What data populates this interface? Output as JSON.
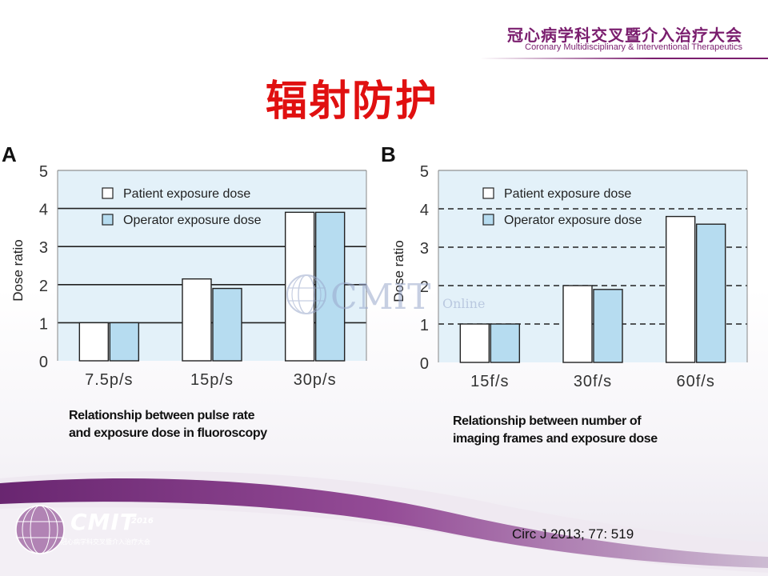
{
  "header": {
    "org_cn": "冠心病学科交叉暨介入治疗大会",
    "org_en": "Coronary Multidisciplinary & Interventional Therapeutics"
  },
  "title": "辐射防护",
  "watermark": {
    "text": "CMIT",
    "small": "Online"
  },
  "logo": {
    "text": "CMIT",
    "year": "2016",
    "sub": "冠心病学科交叉暨介入治疗大会"
  },
  "citation": "Circ J 2013; 77: 519",
  "colors": {
    "plot_bg": "#e3f1f9",
    "patient_bar": "#ffffff",
    "operator_bar": "#b6dcf0",
    "title_red": "#e01010",
    "brand_purple": "#7a1e6e"
  },
  "chart_data": [
    {
      "panel": "A",
      "type": "bar",
      "ylabel": "Dose ratio",
      "ylim": [
        0,
        5
      ],
      "yticks": [
        "0",
        "1",
        "2",
        "3",
        "4",
        "5"
      ],
      "gridlines": "solid",
      "legend_position": "top-left",
      "categories": [
        "7.5p/s",
        "15p/s",
        "30p/s"
      ],
      "series": [
        {
          "name": "Patient exposure dose",
          "values": [
            1.0,
            2.15,
            3.9
          ]
        },
        {
          "name": "Operator exposure dose",
          "values": [
            1.0,
            1.9,
            3.9
          ]
        }
      ],
      "caption": [
        "Relationship between pulse rate",
        "and exposure dose in fluoroscopy"
      ]
    },
    {
      "panel": "B",
      "type": "bar",
      "ylabel": "Dose ratio",
      "ylim": [
        0,
        5
      ],
      "yticks": [
        "0",
        "1",
        "2",
        "3",
        "4",
        "5"
      ],
      "gridlines": "dashed",
      "legend_position": "top-left",
      "categories": [
        "15f/s",
        "30f/s",
        "60f/s"
      ],
      "series": [
        {
          "name": "Patient exposure dose",
          "values": [
            1.0,
            2.0,
            3.8
          ]
        },
        {
          "name": "Operator exposure dose",
          "values": [
            1.0,
            1.9,
            3.6
          ]
        }
      ],
      "caption": [
        "Relationship between number of",
        "imaging frames  and exposure dose"
      ]
    }
  ]
}
